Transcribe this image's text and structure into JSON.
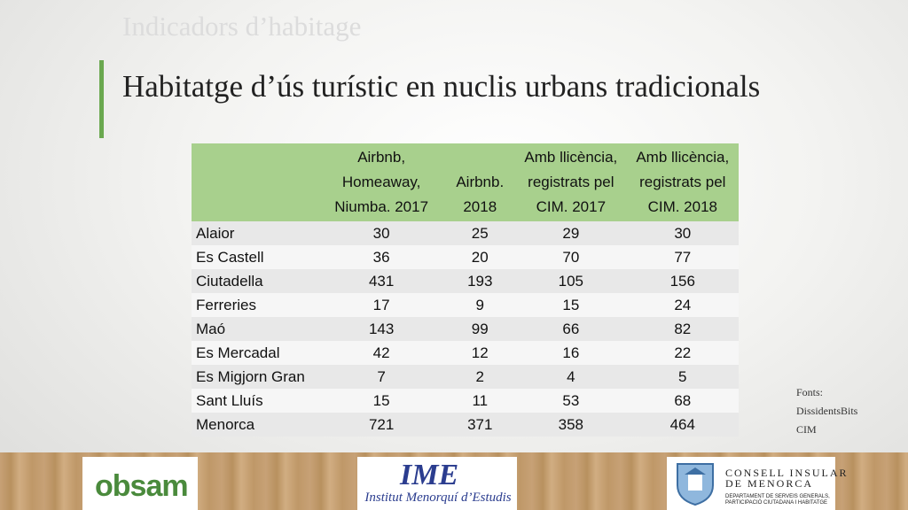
{
  "slide": {
    "supertitle": "Indicadors d’habitage",
    "title": "Habitatge d’ús turístic en nuclis urbans tradicionals"
  },
  "table": {
    "headers": [
      "",
      "Airbnb, Homeaway, Niumba. 2017",
      "Airbnb. 2018",
      "Amb llicència, registrats pel CIM. 2017",
      "Amb llicència, registrats pel CIM. 2018"
    ],
    "rows": [
      [
        "Alaior",
        "30",
        "25",
        "29",
        "30"
      ],
      [
        "Es Castell",
        "36",
        "20",
        "70",
        "77"
      ],
      [
        "Ciutadella",
        "431",
        "193",
        "105",
        "156"
      ],
      [
        "Ferreries",
        "17",
        "9",
        "15",
        "24"
      ],
      [
        "Maó",
        "143",
        "99",
        "66",
        "82"
      ],
      [
        "Es Mercadal",
        "42",
        "12",
        "16",
        "22"
      ],
      [
        "Es Migjorn Gran",
        "7",
        "2",
        "4",
        "5"
      ],
      [
        "Sant Lluís",
        "15",
        "11",
        "53",
        "68"
      ],
      [
        "Menorca",
        "721",
        "371",
        "358",
        "464"
      ]
    ]
  },
  "sources": [
    "Fonts:",
    "DissidentsBits",
    "CIM"
  ],
  "logos": {
    "obsam": "obsam",
    "ime_mark": "IME",
    "ime_name": "Institut Menorquí d’Estudis",
    "cim_line1": "CONSELL INSULAR",
    "cim_line2": "DE MENORCA",
    "cim_sub1": "DEPARTAMENT DE SERVEIS GENERALS,",
    "cim_sub2": "PARTICIPACIÓ CIUTADANA I HABITATGE"
  },
  "colors": {
    "accent": "#6aa84f",
    "header_fill": "#a8d08d"
  }
}
